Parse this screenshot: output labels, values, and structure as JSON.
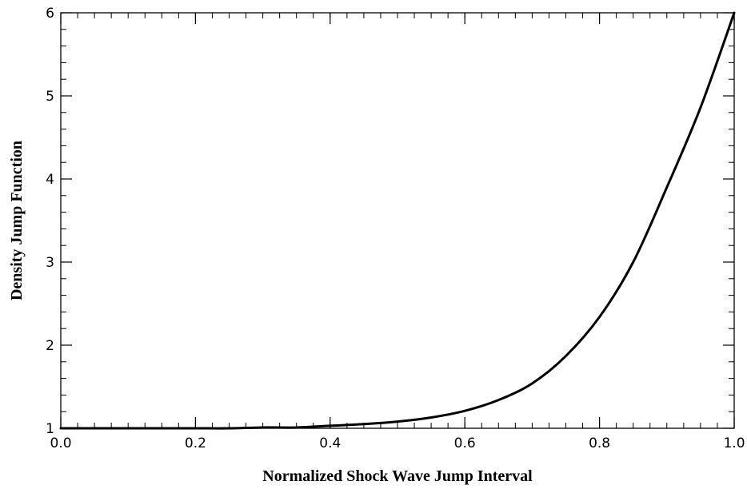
{
  "chart_data": {
    "type": "line",
    "title": "",
    "xlabel": "Normalized Shock Wave Jump Interval",
    "ylabel": "Density Jump Function",
    "xlim": [
      0.0,
      1.0
    ],
    "ylim": [
      1,
      6
    ],
    "x_ticks": [
      {
        "value": 0.0,
        "label": "0.0"
      },
      {
        "value": 0.2,
        "label": "0.2"
      },
      {
        "value": 0.4,
        "label": "0.4"
      },
      {
        "value": 0.6,
        "label": "0.6"
      },
      {
        "value": 0.8,
        "label": "0.8"
      },
      {
        "value": 1.0,
        "label": "1.0"
      }
    ],
    "y_ticks": [
      {
        "value": 1,
        "label": "1"
      },
      {
        "value": 2,
        "label": "2"
      },
      {
        "value": 3,
        "label": "3"
      },
      {
        "value": 4,
        "label": "4"
      },
      {
        "value": 5,
        "label": "5"
      },
      {
        "value": 6,
        "label": "6"
      }
    ],
    "x_minor_step": 0.025,
    "y_minor_step": 0.2,
    "grid": false,
    "line_color": "#000000",
    "series": [
      {
        "x": [
          0.0,
          0.05,
          0.1,
          0.15,
          0.2,
          0.25,
          0.3,
          0.35,
          0.4,
          0.45,
          0.5,
          0.55,
          0.6,
          0.65,
          0.7,
          0.75,
          0.8,
          0.85,
          0.9,
          0.95,
          1.0
        ],
        "y": [
          1.0,
          1.0,
          1.0,
          1.0,
          1.0,
          1.0,
          1.01,
          1.01,
          1.03,
          1.05,
          1.08,
          1.13,
          1.21,
          1.34,
          1.54,
          1.87,
          2.34,
          3.0,
          3.9,
          4.86,
          6.0
        ]
      }
    ]
  }
}
